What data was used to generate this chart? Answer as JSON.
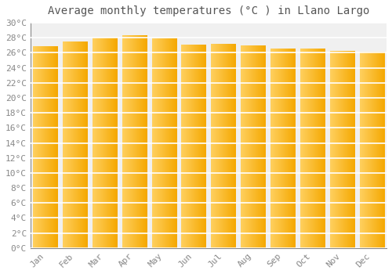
{
  "title": "Average monthly temperatures (°C ) in Llano Largo",
  "months": [
    "Jan",
    "Feb",
    "Mar",
    "Apr",
    "May",
    "Jun",
    "Jul",
    "Aug",
    "Sep",
    "Oct",
    "Nov",
    "Dec"
  ],
  "values": [
    26.8,
    27.5,
    28.0,
    28.3,
    27.9,
    27.1,
    27.2,
    26.9,
    26.5,
    26.5,
    26.2,
    26.1
  ],
  "bar_color_left": "#FFD060",
  "bar_color_right": "#F5A800",
  "ylim": [
    0,
    30
  ],
  "ytick_step": 2,
  "background_color": "#FFFFFF",
  "plot_bg_color": "#F0F0F0",
  "grid_color": "#FFFFFF",
  "title_fontsize": 10,
  "tick_fontsize": 8,
  "font_family": "monospace"
}
